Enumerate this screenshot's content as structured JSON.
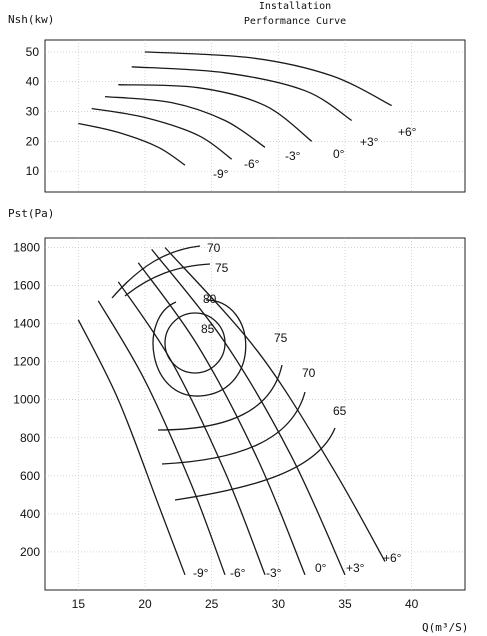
{
  "header": {
    "title_line1": "Installation",
    "title_line2": "Performance Curve"
  },
  "chart_data": [
    {
      "type": "line",
      "ylabel": "Nsh(kw)",
      "xlim": [
        12.5,
        44
      ],
      "ylim": [
        3,
        54
      ],
      "yticks": [
        10,
        20,
        30,
        40,
        50
      ],
      "grid": true,
      "series": [
        {
          "name": "-9°",
          "points": [
            [
              15,
              26
            ],
            [
              18,
              23
            ],
            [
              21,
              18
            ],
            [
              23,
              12
            ]
          ]
        },
        {
          "name": "-6°",
          "points": [
            [
              16,
              31
            ],
            [
              20,
              28
            ],
            [
              24,
              22
            ],
            [
              26.5,
              14
            ]
          ]
        },
        {
          "name": "-3°",
          "points": [
            [
              17,
              35
            ],
            [
              22,
              33
            ],
            [
              26,
              27
            ],
            [
              29,
              18
            ]
          ]
        },
        {
          "name": "0°",
          "points": [
            [
              18,
              39
            ],
            [
              24,
              38
            ],
            [
              29,
              32
            ],
            [
              32.5,
              20
            ]
          ]
        },
        {
          "name": "+3°",
          "points": [
            [
              19,
              45
            ],
            [
              26,
              43
            ],
            [
              32,
              37
            ],
            [
              35.5,
              27
            ]
          ]
        },
        {
          "name": "+6°",
          "points": [
            [
              20,
              50
            ],
            [
              28,
              48
            ],
            [
              34,
              42
            ],
            [
              38.5,
              32
            ]
          ]
        }
      ],
      "curve_labels": [
        "-9°",
        "-6°",
        "-3°",
        "0°",
        "+3°",
        "+6°"
      ]
    },
    {
      "type": "line",
      "ylabel": "Pst(Pa)",
      "xlabel": "Q(m³/S)",
      "xlim": [
        12.5,
        44
      ],
      "ylim": [
        0,
        1850
      ],
      "xticks": [
        15,
        20,
        25,
        30,
        35,
        40
      ],
      "yticks": [
        200,
        400,
        600,
        800,
        1000,
        1200,
        1400,
        1600,
        1800
      ],
      "grid": true,
      "series": [
        {
          "name": "-9°",
          "points": [
            [
              15,
              1420
            ],
            [
              18,
              1000
            ],
            [
              21,
              450
            ],
            [
              23,
              80
            ]
          ]
        },
        {
          "name": "-6°",
          "points": [
            [
              16.5,
              1520
            ],
            [
              20,
              1100
            ],
            [
              23.5,
              550
            ],
            [
              26,
              80
            ]
          ]
        },
        {
          "name": "-3°",
          "points": [
            [
              18,
              1620
            ],
            [
              22,
              1200
            ],
            [
              26,
              620
            ],
            [
              29,
              80
            ]
          ]
        },
        {
          "name": "0°",
          "points": [
            [
              19.5,
              1720
            ],
            [
              24,
              1280
            ],
            [
              28.5,
              680
            ],
            [
              32,
              80
            ]
          ]
        },
        {
          "name": "+3°",
          "points": [
            [
              20.5,
              1790
            ],
            [
              26,
              1300
            ],
            [
              31,
              700
            ],
            [
              35,
              80
            ]
          ]
        },
        {
          "name": "+6°",
          "points": [
            [
              21.5,
              1800
            ],
            [
              28.5,
              1250
            ],
            [
              34,
              650
            ],
            [
              38,
              150
            ]
          ]
        }
      ],
      "curve_labels": [
        "-9°",
        "-6°",
        "-3°",
        "0°",
        "+3°",
        "+6°"
      ],
      "efficiency_labels": [
        "70",
        "75",
        "80",
        "85",
        "75",
        "70",
        "65"
      ]
    }
  ]
}
